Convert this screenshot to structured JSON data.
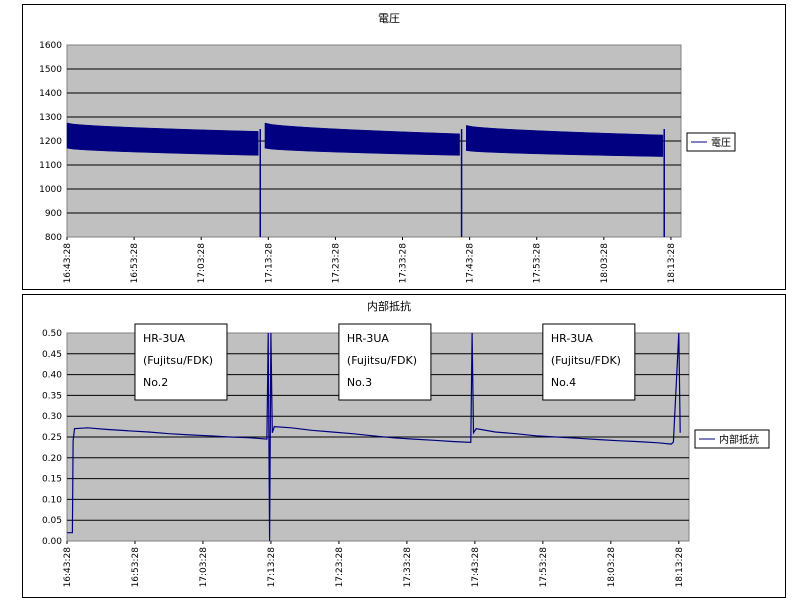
{
  "colors": {
    "plot_bg": "#c0c0c0",
    "grid": "#000000",
    "series": "#000080"
  },
  "chart_data": [
    {
      "type": "line",
      "title": "電圧",
      "legend": {
        "label": "電圧",
        "placement": "right"
      },
      "ylim": [
        800,
        1600
      ],
      "yticks": [
        "800",
        "900",
        "1000",
        "1100",
        "1200",
        "1300",
        "1400",
        "1500",
        "1600"
      ],
      "xticks": [
        "16:43:28",
        "16:53:28",
        "17:03:28",
        "17:13:28",
        "17:23:28",
        "17:33:28",
        "17:43:28",
        "17:53:28",
        "18:03:28",
        "18:13:28"
      ],
      "xlim_minutes": [
        0,
        91.5
      ],
      "segments": [
        {
          "start": 0,
          "end": 28.5,
          "upper_start": 1275,
          "upper_end": 1240,
          "lower_start": 1170,
          "lower_end": 1140
        },
        {
          "start": 29.5,
          "end": 58.5,
          "upper_start": 1275,
          "upper_end": 1230,
          "lower_start": 1170,
          "lower_end": 1140
        },
        {
          "start": 59.5,
          "end": 88.8,
          "upper_start": 1265,
          "upper_end": 1225,
          "lower_start": 1160,
          "lower_end": 1135
        }
      ],
      "drops": [
        {
          "x": 28.8,
          "y": 800
        },
        {
          "x": 58.8,
          "y": 800
        },
        {
          "x": 89.0,
          "y": 800
        }
      ]
    },
    {
      "type": "line",
      "title": "内部抵抗",
      "legend": {
        "label": "内部抵抗",
        "placement": "right"
      },
      "ylim": [
        0,
        0.5
      ],
      "yticks": [
        "0.00",
        "0.05",
        "0.10",
        "0.15",
        "0.20",
        "0.25",
        "0.30",
        "0.35",
        "0.40",
        "0.45",
        "0.50"
      ],
      "xticks": [
        "16:43:28",
        "16:53:28",
        "17:03:28",
        "17:13:28",
        "17:23:28",
        "17:33:28",
        "17:43:28",
        "17:53:28",
        "18:03:28",
        "18:13:28"
      ],
      "xlim_minutes": [
        0,
        91.5
      ],
      "series": [
        {
          "points": [
            [
              0,
              0.02
            ],
            [
              0.8,
              0.02
            ],
            [
              0.9,
              0.24
            ],
            [
              1.1,
              0.27
            ],
            [
              3,
              0.272
            ],
            [
              6,
              0.268
            ],
            [
              9,
              0.265
            ],
            [
              12,
              0.262
            ],
            [
              15,
              0.258
            ],
            [
              18,
              0.255
            ],
            [
              21,
              0.253
            ],
            [
              24,
              0.25
            ],
            [
              27,
              0.248
            ],
            [
              29.4,
              0.245
            ],
            [
              29.6,
              0.5
            ],
            [
              29.8,
              0.0
            ],
            [
              30.0,
              0.5
            ],
            [
              30.2,
              0.26
            ],
            [
              30.5,
              0.275
            ],
            [
              33,
              0.272
            ],
            [
              36,
              0.266
            ],
            [
              39,
              0.262
            ],
            [
              42,
              0.258
            ],
            [
              45,
              0.253
            ],
            [
              48,
              0.248
            ],
            [
              51,
              0.245
            ],
            [
              54,
              0.242
            ],
            [
              57,
              0.239
            ],
            [
              59.4,
              0.237
            ],
            [
              59.6,
              0.5
            ],
            [
              59.8,
              0.26
            ],
            [
              60.2,
              0.27
            ],
            [
              63,
              0.262
            ],
            [
              66,
              0.258
            ],
            [
              69,
              0.253
            ],
            [
              72,
              0.25
            ],
            [
              75,
              0.247
            ],
            [
              78,
              0.244
            ],
            [
              81,
              0.241
            ],
            [
              84,
              0.239
            ],
            [
              87,
              0.236
            ],
            [
              88.9,
              0.233
            ],
            [
              89.2,
              0.238
            ],
            [
              90.0,
              0.5
            ],
            [
              90.2,
              0.26
            ]
          ]
        }
      ],
      "annotations": [
        {
          "lines": [
            "HR-3UA",
            "(Fujitsu/FDK)",
            "No.2"
          ]
        },
        {
          "lines": [
            "HR-3UA",
            "(Fujitsu/FDK)",
            "No.3"
          ]
        },
        {
          "lines": [
            "HR-3UA",
            "(Fujitsu/FDK)",
            "No.4"
          ]
        }
      ]
    }
  ]
}
